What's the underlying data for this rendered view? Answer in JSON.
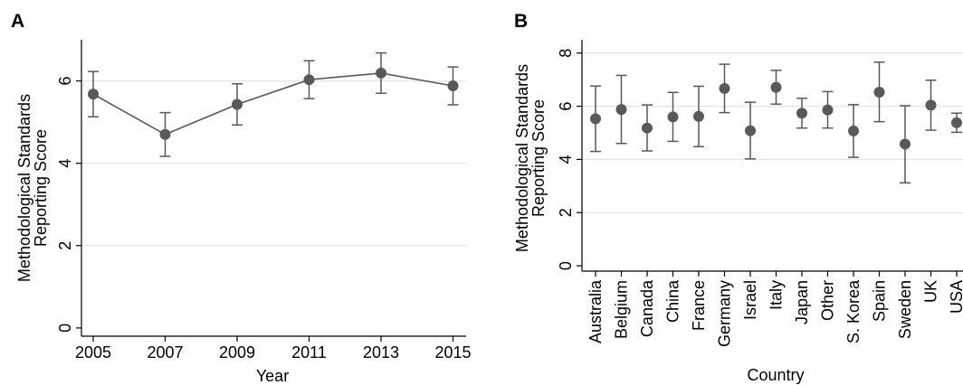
{
  "chart_data": [
    {
      "type": "line",
      "panel_label": "A",
      "xlabel": "Year",
      "ylabel": [
        "Methodological Standards",
        "Reporting Score"
      ],
      "x": [
        "2005",
        "2007",
        "2009",
        "2011",
        "2013",
        "2015"
      ],
      "y": [
        5.68,
        4.7,
        5.43,
        6.03,
        6.19,
        5.88
      ],
      "ci_lower": [
        5.13,
        4.17,
        4.93,
        5.57,
        5.7,
        5.42
      ],
      "ci_upper": [
        6.23,
        5.23,
        5.93,
        6.49,
        6.68,
        6.34
      ],
      "yticks": [
        "0",
        "2",
        "4",
        "6"
      ],
      "ylim": [
        -0.2,
        7.0
      ],
      "grid": true,
      "color": "#595959"
    },
    {
      "type": "scatter",
      "panel_label": "B",
      "xlabel": "Country",
      "ylabel": [
        "Methodological Standards",
        "Reporting Score"
      ],
      "categories": [
        "Australia",
        "Belgium",
        "Canada",
        "China",
        "France",
        "Germany",
        "Israel",
        "Italy",
        "Japan",
        "Other",
        "S. Korea",
        "Spain",
        "Sweden",
        "UK",
        "USA"
      ],
      "y": [
        5.53,
        5.88,
        5.18,
        5.6,
        5.62,
        6.67,
        5.08,
        6.71,
        5.74,
        5.86,
        5.07,
        6.53,
        4.58,
        6.04,
        5.38
      ],
      "ci_lower": [
        4.3,
        4.6,
        4.32,
        4.68,
        4.48,
        5.76,
        4.02,
        6.08,
        5.18,
        5.18,
        4.08,
        5.42,
        3.12,
        5.1,
        5.02
      ],
      "ci_upper": [
        6.76,
        7.16,
        6.05,
        6.52,
        6.75,
        7.58,
        6.15,
        7.35,
        6.3,
        6.55,
        6.06,
        7.66,
        6.02,
        6.98,
        5.74
      ],
      "yticks": [
        "0",
        "2",
        "4",
        "6",
        "8"
      ],
      "ylim": [
        -0.2,
        8.5
      ],
      "grid": true,
      "color": "#595959"
    }
  ]
}
